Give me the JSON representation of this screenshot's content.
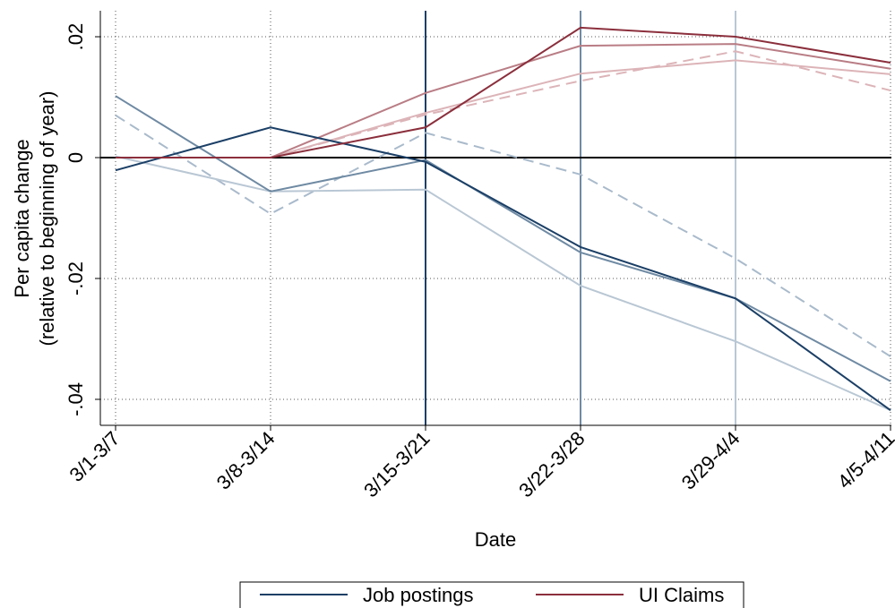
{
  "chart_data": {
    "type": "line",
    "ylabel": [
      "Per capita change",
      "(relative to beginning of year)"
    ],
    "xlabel": "Date",
    "categories": [
      "3/1-3/7",
      "3/8-3/14",
      "3/15-3/21",
      "3/22-3/28",
      "3/29-4/4",
      "4/5-4/11"
    ],
    "series": [
      {
        "name": "Job postings",
        "color": "#1b3f66",
        "values": [
          -0.0021,
          0.005,
          -0.0007,
          -0.0148,
          -0.0233,
          -0.0418
        ]
      },
      {
        "color": "#6f8aa3",
        "values": [
          0.0102,
          -0.0056,
          -0.0004,
          -0.0157,
          -0.0233,
          -0.037
        ]
      },
      {
        "color": "#b9c7d4",
        "values": [
          0.0002,
          -0.0056,
          -0.0053,
          -0.0212,
          -0.0304,
          -0.0418
        ]
      },
      {
        "name": "UI Claims",
        "color": "#8b2f3c",
        "values": [
          0,
          0,
          0.005,
          0.0215,
          0.02,
          0.0157
        ]
      },
      {
        "color": "#b97d85",
        "values": [
          0,
          0,
          0.0107,
          0.0185,
          0.0188,
          0.0147
        ]
      },
      {
        "color": "#dcb4b8",
        "values": [
          0,
          0,
          0.0074,
          0.0139,
          0.0161,
          0.0138
        ]
      },
      {
        "color": "#a9bacb",
        "dashed": true,
        "values": [
          0.007,
          -0.0093,
          0.0041,
          -0.0028,
          -0.0167,
          -0.0329
        ]
      },
      {
        "color": "#dcb4b8",
        "dashed": true,
        "values": [
          0,
          0,
          0.0071,
          0.0127,
          0.0176,
          0.0111
        ]
      }
    ],
    "vlines": [
      {
        "category": 2,
        "color": "#1b3f66"
      },
      {
        "category": 3,
        "color": "#6f8aa3"
      },
      {
        "category": 4,
        "color": "#b9c7d4"
      }
    ],
    "ylim": [
      -0.0443,
      0.0243
    ],
    "yticks": [
      {
        "value": 0.02,
        "label": ".02"
      },
      0,
      {
        "value": -0.02,
        "label": "-.02"
      },
      {
        "value": -0.04,
        "label": "-.04"
      }
    ],
    "zero_line": true,
    "grid": true
  }
}
